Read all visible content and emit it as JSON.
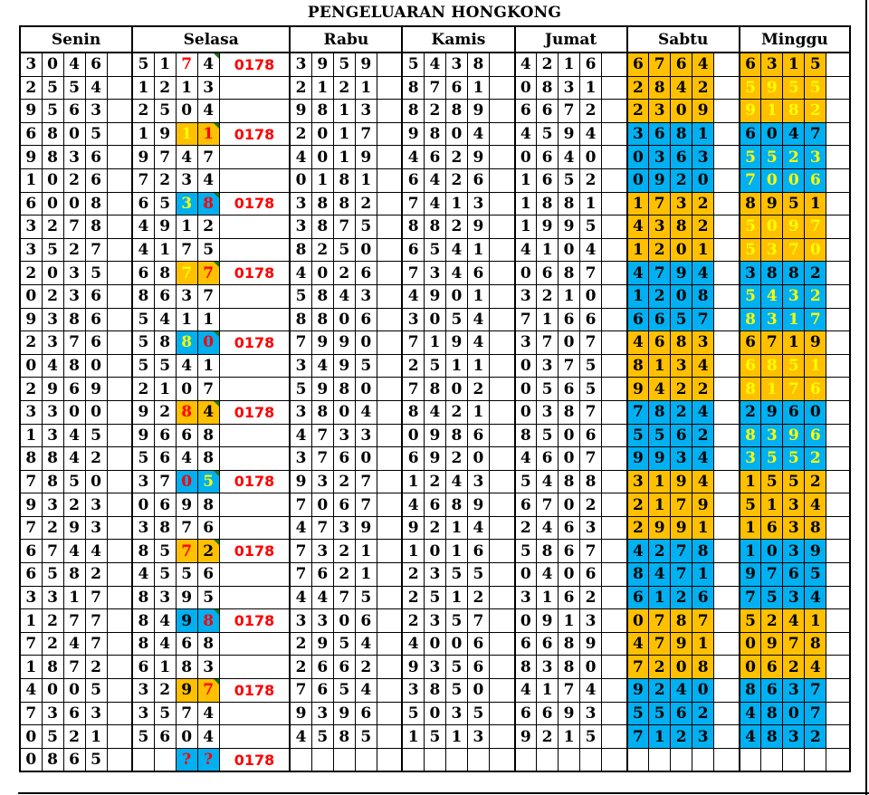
{
  "title": "PENGELUARAN HONGKONG",
  "days": [
    "Senin",
    "Selasa",
    "Rabu",
    "Kamis",
    "Jumat",
    "Sabtu",
    "Minggu"
  ],
  "colors": {
    "orange": "#FFC000",
    "blue": "#00B0F0",
    "yellow": "#FFFF00",
    "red": "#FF0000",
    "black": "#000000"
  },
  "rows": [
    {
      "sn": "3046",
      "sl": "5174",
      "sx": "0178",
      "rb": "3959",
      "km": "5438",
      "jm": "4216",
      "sb": "6764",
      "mg": "6315",
      "band": "#FFC000",
      "mg_fg": "#000000",
      "hl": {
        "bg": null,
        "c3": "#FF0000",
        "c4": "#000000"
      }
    },
    {
      "sn": "2554",
      "sl": "1213",
      "sx": "",
      "rb": "2121",
      "km": "8761",
      "jm": "0831",
      "sb": "2842",
      "mg": "5955",
      "band": "#FFC000",
      "mg_fg": "#FFFF00"
    },
    {
      "sn": "9563",
      "sl": "2504",
      "sx": "",
      "rb": "9813",
      "km": "8289",
      "jm": "6672",
      "sb": "2309",
      "mg": "9182",
      "band": "#FFC000",
      "mg_fg": "#FFFF00"
    },
    {
      "sn": "6805",
      "sl": "1911",
      "sx": "0178",
      "rb": "2017",
      "km": "9804",
      "jm": "4594",
      "sb": "3681",
      "mg": "6047",
      "band": "#00B0F0",
      "mg_fg": "#000000",
      "hl": {
        "bg": "#FFC000",
        "c3": "#FFFF00",
        "c4": "#FF0000"
      }
    },
    {
      "sn": "9836",
      "sl": "9747",
      "sx": "",
      "rb": "4019",
      "km": "4629",
      "jm": "0640",
      "sb": "0363",
      "mg": "5523",
      "band": "#00B0F0",
      "mg_fg": "#FFFF00"
    },
    {
      "sn": "1026",
      "sl": "7234",
      "sx": "",
      "rb": "0181",
      "km": "6426",
      "jm": "1652",
      "sb": "0920",
      "mg": "7006",
      "band": "#00B0F0",
      "mg_fg": "#FFFF00"
    },
    {
      "sn": "6008",
      "sl": "6538",
      "sx": "0178",
      "rb": "3882",
      "km": "7413",
      "jm": "1881",
      "sb": "1732",
      "mg": "8951",
      "band": "#FFC000",
      "mg_fg": "#000000",
      "hl": {
        "bg": "#00B0F0",
        "c3": "#FFFF00",
        "c4": "#FF0000"
      }
    },
    {
      "sn": "3278",
      "sl": "4912",
      "sx": "",
      "rb": "3875",
      "km": "8829",
      "jm": "1995",
      "sb": "4382",
      "mg": "5097",
      "band": "#FFC000",
      "mg_fg": "#FFFF00"
    },
    {
      "sn": "3527",
      "sl": "4175",
      "sx": "",
      "rb": "8250",
      "km": "6541",
      "jm": "4104",
      "sb": "1201",
      "mg": "5370",
      "band": "#FFC000",
      "mg_fg": "#FFFF00"
    },
    {
      "sn": "2035",
      "sl": "6877",
      "sx": "0178",
      "rb": "4026",
      "km": "7346",
      "jm": "0687",
      "sb": "4794",
      "mg": "3882",
      "band": "#00B0F0",
      "mg_fg": "#000000",
      "hl": {
        "bg": "#FFC000",
        "c3": "#FFFF00",
        "c4": "#FF0000"
      }
    },
    {
      "sn": "0236",
      "sl": "8637",
      "sx": "",
      "rb": "5843",
      "km": "4901",
      "jm": "3210",
      "sb": "1208",
      "mg": "5432",
      "band": "#00B0F0",
      "mg_fg": "#FFFF00"
    },
    {
      "sn": "9386",
      "sl": "5411",
      "sx": "",
      "rb": "8806",
      "km": "3054",
      "jm": "7166",
      "sb": "6657",
      "mg": "8317",
      "band": "#00B0F0",
      "mg_fg": "#FFFF00"
    },
    {
      "sn": "2376",
      "sl": "5880",
      "sx": "0178",
      "rb": "7990",
      "km": "7194",
      "jm": "3707",
      "sb": "4683",
      "mg": "6719",
      "band": "#FFC000",
      "mg_fg": "#000000",
      "hl": {
        "bg": "#00B0F0",
        "c3": "#FFFF00",
        "c4": "#FF0000"
      }
    },
    {
      "sn": "0480",
      "sl": "5541",
      "sx": "",
      "rb": "3495",
      "km": "2511",
      "jm": "0375",
      "sb": "8134",
      "mg": "6851",
      "band": "#FFC000",
      "mg_fg": "#FFFF00"
    },
    {
      "sn": "2969",
      "sl": "2107",
      "sx": "",
      "rb": "5980",
      "km": "7802",
      "jm": "0565",
      "sb": "9422",
      "mg": "8176",
      "band": "#FFC000",
      "mg_fg": "#FFFF00"
    },
    {
      "sn": "3300",
      "sl": "9284",
      "sx": "0178",
      "rb": "3804",
      "km": "8421",
      "jm": "0387",
      "sb": "7824",
      "mg": "2960",
      "band": "#00B0F0",
      "mg_fg": "#000000",
      "hl": {
        "bg": "#FFC000",
        "c3": "#FF0000",
        "c4": "#000000"
      }
    },
    {
      "sn": "1345",
      "sl": "9668",
      "sx": "",
      "rb": "4733",
      "km": "0986",
      "jm": "8506",
      "sb": "5562",
      "mg": "8396",
      "band": "#00B0F0",
      "mg_fg": "#FFFF00"
    },
    {
      "sn": "8842",
      "sl": "5648",
      "sx": "",
      "rb": "3760",
      "km": "6920",
      "jm": "4607",
      "sb": "9934",
      "mg": "3552",
      "band": "#00B0F0",
      "mg_fg": "#FFFF00"
    },
    {
      "sn": "7850",
      "sl": "3705",
      "sx": "0178",
      "rb": "9327",
      "km": "1243",
      "jm": "5488",
      "sb": "3194",
      "mg": "1552",
      "band": "#FFC000",
      "mg_fg": "#000000",
      "hl": {
        "bg": "#00B0F0",
        "c3": "#FF0000",
        "c4": "#FFFF00"
      }
    },
    {
      "sn": "9323",
      "sl": "0698",
      "sx": "",
      "rb": "7067",
      "km": "4689",
      "jm": "6702",
      "sb": "2179",
      "mg": "5134",
      "band": "#FFC000",
      "mg_fg": "#000000"
    },
    {
      "sn": "7293",
      "sl": "3876",
      "sx": "",
      "rb": "4739",
      "km": "9214",
      "jm": "2463",
      "sb": "2991",
      "mg": "1638",
      "band": "#FFC000",
      "mg_fg": "#000000"
    },
    {
      "sn": "6744",
      "sl": "8572",
      "sx": "0178",
      "rb": "7321",
      "km": "1016",
      "jm": "5867",
      "sb": "4278",
      "mg": "1039",
      "band": "#00B0F0",
      "mg_fg": "#000000",
      "hl": {
        "bg": "#FFC000",
        "c3": "#FF0000",
        "c4": "#000000"
      }
    },
    {
      "sn": "6582",
      "sl": "4556",
      "sx": "",
      "rb": "7621",
      "km": "2355",
      "jm": "0406",
      "sb": "8471",
      "mg": "9765",
      "band": "#00B0F0",
      "mg_fg": "#000000"
    },
    {
      "sn": "3317",
      "sl": "8395",
      "sx": "",
      "rb": "4475",
      "km": "2512",
      "jm": "3162",
      "sb": "6126",
      "mg": "7534",
      "band": "#00B0F0",
      "mg_fg": "#000000"
    },
    {
      "sn": "1277",
      "sl": "8498",
      "sx": "0178",
      "rb": "3306",
      "km": "2357",
      "jm": "0913",
      "sb": "0787",
      "mg": "5241",
      "band": "#FFC000",
      "mg_fg": "#000000",
      "hl": {
        "bg": "#00B0F0",
        "c3": "#000000",
        "c4": "#FF0000"
      }
    },
    {
      "sn": "7247",
      "sl": "8468",
      "sx": "",
      "rb": "2954",
      "km": "4006",
      "jm": "6689",
      "sb": "4791",
      "mg": "0978",
      "band": "#FFC000",
      "mg_fg": "#000000"
    },
    {
      "sn": "1872",
      "sl": "6183",
      "sx": "",
      "rb": "2662",
      "km": "9356",
      "jm": "8380",
      "sb": "7208",
      "mg": "0624",
      "band": "#FFC000",
      "mg_fg": "#000000"
    },
    {
      "sn": "4005",
      "sl": "3297",
      "sx": "0178",
      "rb": "7654",
      "km": "3850",
      "jm": "4174",
      "sb": "9240",
      "mg": "8637",
      "band": "#00B0F0",
      "mg_fg": "#000000",
      "hl": {
        "bg": "#FFC000",
        "c3": "#000000",
        "c4": "#FF0000"
      }
    },
    {
      "sn": "7363",
      "sl": "3574",
      "sx": "",
      "rb": "9396",
      "km": "5035",
      "jm": "6693",
      "sb": "5562",
      "mg": "4807",
      "band": "#00B0F0",
      "mg_fg": "#000000"
    },
    {
      "sn": "0521",
      "sl": "5604",
      "sx": "",
      "rb": "4585",
      "km": "1513",
      "jm": "9215",
      "sb": "7123",
      "mg": "4832",
      "band": "#00B0F0",
      "mg_fg": "#000000"
    },
    {
      "sn": "0865",
      "sl": "  ??",
      "sx": "0178",
      "rb": "",
      "km": "",
      "jm": "",
      "sb": "",
      "mg": "",
      "band": null,
      "mg_fg": "#000000",
      "hl": {
        "bg": "#00B0F0",
        "c3": "#FF0000",
        "c4": "#FF0000"
      }
    }
  ]
}
